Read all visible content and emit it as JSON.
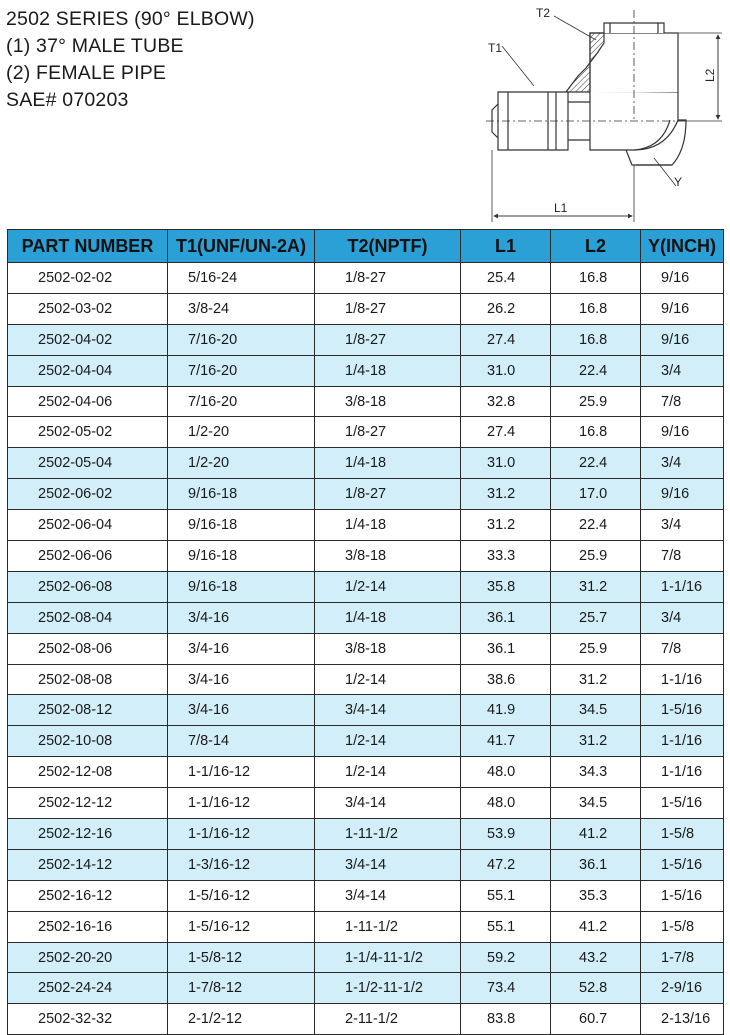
{
  "header": {
    "lines": [
      "2502 SERIES (90° ELBOW)",
      "(1) 37° MALE TUBE",
      "(2) FEMALE PIPE",
      "SAE# 070203"
    ]
  },
  "drawing": {
    "labels": {
      "t2": "T2",
      "t1": "T1",
      "l2": "L2",
      "y": "Y",
      "l1": "L1"
    }
  },
  "table": {
    "headers": [
      "PART NUMBER",
      "T1(UNF/UN-2A)",
      "T2(NPTF)",
      "L1",
      "L2",
      "Y(INCH)"
    ],
    "rows": [
      [
        "2502-02-02",
        "5/16-24",
        "1/8-27",
        "25.4",
        "16.8",
        "9/16"
      ],
      [
        "2502-03-02",
        "3/8-24",
        "1/8-27",
        "26.2",
        "16.8",
        "9/16"
      ],
      [
        "2502-04-02",
        "7/16-20",
        "1/8-27",
        "27.4",
        "16.8",
        "9/16"
      ],
      [
        "2502-04-04",
        "7/16-20",
        "1/4-18",
        "31.0",
        "22.4",
        "3/4"
      ],
      [
        "2502-04-06",
        "7/16-20",
        "3/8-18",
        "32.8",
        "25.9",
        "7/8"
      ],
      [
        "2502-05-02",
        "1/2-20",
        "1/8-27",
        "27.4",
        "16.8",
        "9/16"
      ],
      [
        "2502-05-04",
        "1/2-20",
        "1/4-18",
        "31.0",
        "22.4",
        "3/4"
      ],
      [
        "2502-06-02",
        "9/16-18",
        "1/8-27",
        "31.2",
        "17.0",
        "9/16"
      ],
      [
        "2502-06-04",
        "9/16-18",
        "1/4-18",
        "31.2",
        "22.4",
        "3/4"
      ],
      [
        "2502-06-06",
        "9/16-18",
        "3/8-18",
        "33.3",
        "25.9",
        "7/8"
      ],
      [
        "2502-06-08",
        "9/16-18",
        "1/2-14",
        "35.8",
        "31.2",
        "1-1/16"
      ],
      [
        "2502-08-04",
        "3/4-16",
        "1/4-18",
        "36.1",
        "25.7",
        "3/4"
      ],
      [
        "2502-08-06",
        "3/4-16",
        "3/8-18",
        "36.1",
        "25.9",
        "7/8"
      ],
      [
        "2502-08-08",
        "3/4-16",
        "1/2-14",
        "38.6",
        "31.2",
        "1-1/16"
      ],
      [
        "2502-08-12",
        "3/4-16",
        "3/4-14",
        "41.9",
        "34.5",
        "1-5/16"
      ],
      [
        "2502-10-08",
        "7/8-14",
        "1/2-14",
        "41.7",
        "31.2",
        "1-1/16"
      ],
      [
        "2502-12-08",
        "1-1/16-12",
        "1/2-14",
        "48.0",
        "34.3",
        "1-1/16"
      ],
      [
        "2502-12-12",
        "1-1/16-12",
        "3/4-14",
        "48.0",
        "34.5",
        "1-5/16"
      ],
      [
        "2502-12-16",
        "1-1/16-12",
        "1-11-1/2",
        "53.9",
        "41.2",
        "1-5/8"
      ],
      [
        "2502-14-12",
        "1-3/16-12",
        "3/4-14",
        "47.2",
        "36.1",
        "1-5/16"
      ],
      [
        "2502-16-12",
        "1-5/16-12",
        "3/4-14",
        "55.1",
        "35.3",
        "1-5/16"
      ],
      [
        "2502-16-16",
        "1-5/16-12",
        "1-11-1/2",
        "55.1",
        "41.2",
        "1-5/8"
      ],
      [
        "2502-20-20",
        "1-5/8-12",
        "1-1/4-11-1/2",
        "59.2",
        "43.2",
        "1-7/8"
      ],
      [
        "2502-24-24",
        "1-7/8-12",
        "1-1/2-11-1/2",
        "73.4",
        "52.8",
        "2-9/16"
      ],
      [
        "2502-32-32",
        "2-1/2-12",
        "2-11-1/2",
        "83.8",
        "60.7",
        "2-13/16"
      ]
    ],
    "shaded_rows": [
      2,
      3,
      6,
      7,
      10,
      11,
      14,
      15,
      18,
      19,
      22,
      23
    ],
    "colors": {
      "header_bg": "#2aa0d6",
      "shaded_row_bg": "#d2eef9",
      "border": "#2a2a2a"
    }
  }
}
